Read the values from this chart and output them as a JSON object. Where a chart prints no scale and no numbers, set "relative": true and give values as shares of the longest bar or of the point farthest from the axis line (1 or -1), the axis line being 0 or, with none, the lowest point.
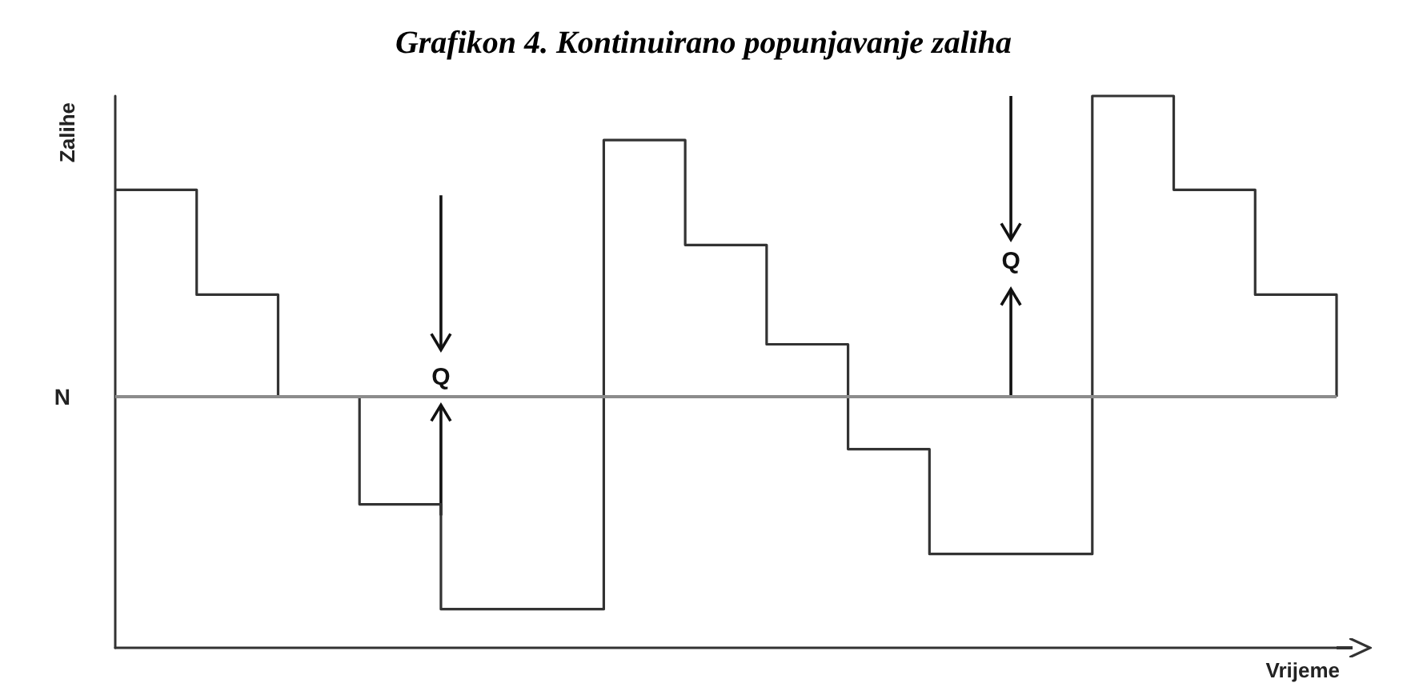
{
  "chart_data": {
    "type": "step",
    "title": "Grafikon 4. Kontinuirano popunjavanje zaliha",
    "xlabel": "Vrijeme",
    "ylabel": "Zalihe",
    "relative": true,
    "categories": [
      null,
      null,
      null,
      null,
      null,
      null,
      null,
      null,
      null,
      null,
      null,
      null,
      null,
      null,
      null,
      null
    ],
    "series": [
      {
        "color": "#333333",
        "values": [
          0.83,
          0.64,
          0.455,
          0.26,
          0.07,
          0.07,
          0.92,
          0.73,
          0.55,
          0.36,
          0.17,
          0.17,
          1,
          0.83,
          0.64,
          0.455
        ]
      }
    ],
    "ref_lines": [
      {
        "axis": "y",
        "value": 0.455,
        "label": "N",
        "color": "#8c8c8c"
      }
    ],
    "annotations": [
      "Q",
      "Q"
    ],
    "marker": "none",
    "grid": false
  }
}
